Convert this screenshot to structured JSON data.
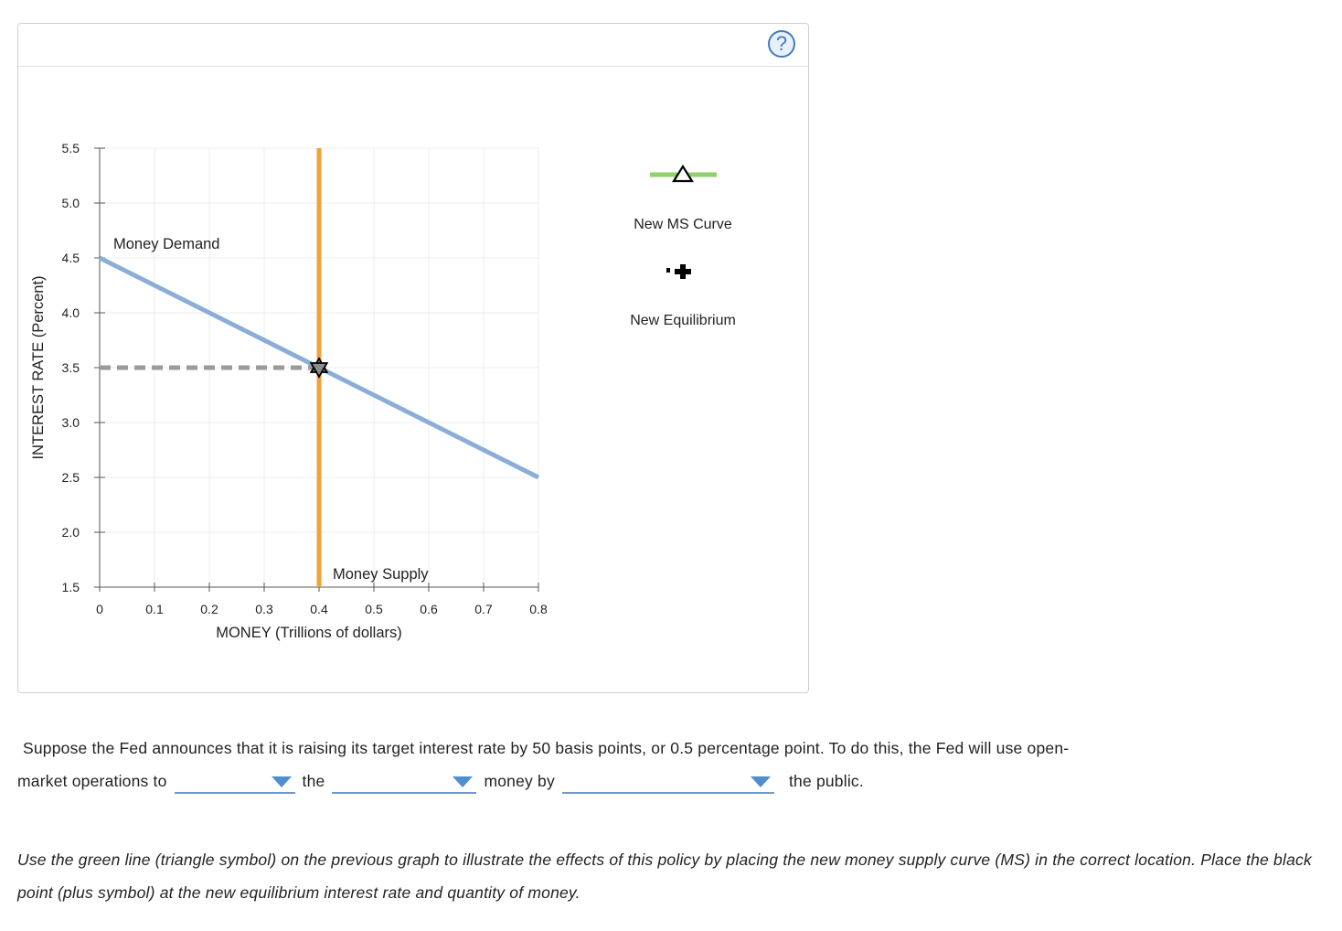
{
  "help": {
    "label": "?"
  },
  "legend": {
    "new_ms": "New MS Curve",
    "new_eq": "New Equilibrium",
    "colors": {
      "new_ms": "#8fd16b",
      "triangle": "#000000",
      "plus": "#000000"
    }
  },
  "chart_data": {
    "type": "line",
    "xlabel": "MONEY (Trillions of dollars)",
    "ylabel": "INTEREST RATE (Percent)",
    "xlim": [
      0,
      0.8
    ],
    "ylim": [
      1.5,
      5.5
    ],
    "xticks": [
      "0",
      "0.1",
      "0.2",
      "0.3",
      "0.4",
      "0.5",
      "0.6",
      "0.7",
      "0.8"
    ],
    "yticks": [
      "1.5",
      "2.0",
      "2.5",
      "3.0",
      "3.5",
      "4.0",
      "4.5",
      "5.0",
      "5.5"
    ],
    "grid": true,
    "series": [
      {
        "name": "Money Demand",
        "x": [
          0,
          0.8
        ],
        "y": [
          4.5,
          2.5
        ],
        "color": "#8aaed4"
      },
      {
        "name": "Money Supply",
        "x": [
          0.4,
          0.4
        ],
        "y": [
          1.5,
          5.5
        ],
        "color": "#f0a23a"
      }
    ],
    "equilibrium": {
      "x": 0.4,
      "y": 3.5,
      "guide_color": "#9a9a9a"
    }
  },
  "question": {
    "part1": "Suppose the Fed announces that it is raising its target interest rate by 50 basis points, or 0.5 percentage point. To do this, the Fed will use open-",
    "part2": "market operations to",
    "part3": "the",
    "part4": "money by",
    "part5": "the public.",
    "dropdown1": "",
    "dropdown2": "",
    "dropdown3": ""
  },
  "instructions": "Use the green line (triangle symbol) on the previous graph to illustrate the effects of this policy by placing the new money supply curve (MS) in the correct location. Place the black point (plus symbol) at the new equilibrium interest rate and quantity of money."
}
